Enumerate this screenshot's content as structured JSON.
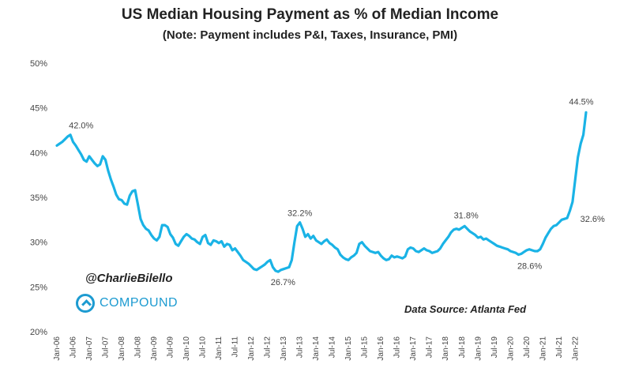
{
  "chart_data": {
    "type": "line",
    "title": "US Median Housing Payment as % of Median Income",
    "subtitle": "(Note: Payment includes P&I, Taxes, Insurance, PMI)",
    "xlabel": "",
    "ylabel": "",
    "ylim": [
      20,
      50
    ],
    "y_ticks": [
      "20%",
      "25%",
      "30%",
      "35%",
      "40%",
      "45%",
      "50%"
    ],
    "x_range": [
      "2006-01",
      "2022-05"
    ],
    "x_ticks": [
      "Jan-06",
      "Jul-06",
      "Jan-07",
      "Jul-07",
      "Jan-08",
      "Jul-08",
      "Jan-09",
      "Jul-09",
      "Jan-10",
      "Jul-10",
      "Jan-11",
      "Jul-11",
      "Jan-12",
      "Jul-12",
      "Jan-13",
      "Jul-13",
      "Jan-14",
      "Jul-14",
      "Jan-15",
      "Jul-15",
      "Jan-16",
      "Jul-16",
      "Jan-17",
      "Jul-17",
      "Jan-18",
      "Jul-18",
      "Jan-19",
      "Jul-19",
      "Jan-20",
      "Jul-20",
      "Jan-21",
      "Jul-21",
      "Jan-22"
    ],
    "grid": false,
    "line_color": "#1ab3e6",
    "series": [
      {
        "name": "",
        "points": [
          [
            "2006-01",
            40.8
          ],
          [
            "2006-02",
            41.0
          ],
          [
            "2006-03",
            41.2
          ],
          [
            "2006-04",
            41.5
          ],
          [
            "2006-05",
            41.8
          ],
          [
            "2006-06",
            42.0
          ],
          [
            "2006-07",
            41.2
          ],
          [
            "2006-08",
            40.8
          ],
          [
            "2006-09",
            40.3
          ],
          [
            "2006-10",
            39.8
          ],
          [
            "2006-11",
            39.2
          ],
          [
            "2006-12",
            39.0
          ],
          [
            "2007-01",
            39.6
          ],
          [
            "2007-02",
            39.2
          ],
          [
            "2007-03",
            38.8
          ],
          [
            "2007-04",
            38.5
          ],
          [
            "2007-05",
            38.7
          ],
          [
            "2007-06",
            39.6
          ],
          [
            "2007-07",
            39.2
          ],
          [
            "2007-08",
            38.0
          ],
          [
            "2007-09",
            37.0
          ],
          [
            "2007-10",
            36.2
          ],
          [
            "2007-11",
            35.3
          ],
          [
            "2007-12",
            34.8
          ],
          [
            "2008-01",
            34.7
          ],
          [
            "2008-02",
            34.3
          ],
          [
            "2008-03",
            34.2
          ],
          [
            "2008-04",
            35.2
          ],
          [
            "2008-05",
            35.7
          ],
          [
            "2008-06",
            35.8
          ],
          [
            "2008-07",
            34.2
          ],
          [
            "2008-08",
            32.6
          ],
          [
            "2008-09",
            31.9
          ],
          [
            "2008-10",
            31.5
          ],
          [
            "2008-11",
            31.3
          ],
          [
            "2008-12",
            30.8
          ],
          [
            "2009-01",
            30.4
          ],
          [
            "2009-02",
            30.2
          ],
          [
            "2009-03",
            30.6
          ],
          [
            "2009-04",
            31.9
          ],
          [
            "2009-05",
            31.9
          ],
          [
            "2009-06",
            31.7
          ],
          [
            "2009-07",
            30.9
          ],
          [
            "2009-08",
            30.5
          ],
          [
            "2009-09",
            29.8
          ],
          [
            "2009-10",
            29.6
          ],
          [
            "2009-11",
            30.1
          ],
          [
            "2009-12",
            30.6
          ],
          [
            "2010-01",
            30.9
          ],
          [
            "2010-02",
            30.7
          ],
          [
            "2010-03",
            30.4
          ],
          [
            "2010-04",
            30.3
          ],
          [
            "2010-05",
            30.0
          ],
          [
            "2010-06",
            29.8
          ],
          [
            "2010-07",
            30.6
          ],
          [
            "2010-08",
            30.8
          ],
          [
            "2010-09",
            29.9
          ],
          [
            "2010-10",
            29.7
          ],
          [
            "2010-11",
            30.2
          ],
          [
            "2010-12",
            30.1
          ],
          [
            "2011-01",
            29.9
          ],
          [
            "2011-02",
            30.1
          ],
          [
            "2011-03",
            29.5
          ],
          [
            "2011-04",
            29.8
          ],
          [
            "2011-05",
            29.7
          ],
          [
            "2011-06",
            29.1
          ],
          [
            "2011-07",
            29.3
          ],
          [
            "2011-08",
            28.9
          ],
          [
            "2011-09",
            28.5
          ],
          [
            "2011-10",
            28.0
          ],
          [
            "2011-11",
            27.8
          ],
          [
            "2011-12",
            27.6
          ],
          [
            "2012-01",
            27.3
          ],
          [
            "2012-02",
            27.0
          ],
          [
            "2012-03",
            26.9
          ],
          [
            "2012-04",
            27.1
          ],
          [
            "2012-05",
            27.3
          ],
          [
            "2012-06",
            27.5
          ],
          [
            "2012-07",
            27.8
          ],
          [
            "2012-08",
            28.0
          ],
          [
            "2012-09",
            27.2
          ],
          [
            "2012-10",
            26.8
          ],
          [
            "2012-11",
            26.7
          ],
          [
            "2012-12",
            26.9
          ],
          [
            "2013-01",
            27.0
          ],
          [
            "2013-02",
            27.1
          ],
          [
            "2013-03",
            27.2
          ],
          [
            "2013-04",
            28.0
          ],
          [
            "2013-05",
            30.0
          ],
          [
            "2013-06",
            31.8
          ],
          [
            "2013-07",
            32.2
          ],
          [
            "2013-08",
            31.5
          ],
          [
            "2013-09",
            30.6
          ],
          [
            "2013-10",
            30.9
          ],
          [
            "2013-11",
            30.4
          ],
          [
            "2013-12",
            30.7
          ],
          [
            "2014-01",
            30.2
          ],
          [
            "2014-02",
            30.0
          ],
          [
            "2014-03",
            29.8
          ],
          [
            "2014-04",
            30.1
          ],
          [
            "2014-05",
            30.3
          ],
          [
            "2014-06",
            29.9
          ],
          [
            "2014-07",
            29.7
          ],
          [
            "2014-08",
            29.4
          ],
          [
            "2014-09",
            29.2
          ],
          [
            "2014-10",
            28.6
          ],
          [
            "2014-11",
            28.3
          ],
          [
            "2014-12",
            28.1
          ],
          [
            "2015-01",
            28.0
          ],
          [
            "2015-02",
            28.3
          ],
          [
            "2015-03",
            28.5
          ],
          [
            "2015-04",
            28.8
          ],
          [
            "2015-05",
            29.8
          ],
          [
            "2015-06",
            30.0
          ],
          [
            "2015-07",
            29.6
          ],
          [
            "2015-08",
            29.3
          ],
          [
            "2015-09",
            29.0
          ],
          [
            "2015-10",
            28.9
          ],
          [
            "2015-11",
            28.8
          ],
          [
            "2015-12",
            28.9
          ],
          [
            "2016-01",
            28.5
          ],
          [
            "2016-02",
            28.2
          ],
          [
            "2016-03",
            28.0
          ],
          [
            "2016-04",
            28.1
          ],
          [
            "2016-05",
            28.5
          ],
          [
            "2016-06",
            28.3
          ],
          [
            "2016-07",
            28.4
          ],
          [
            "2016-08",
            28.3
          ],
          [
            "2016-09",
            28.2
          ],
          [
            "2016-10",
            28.4
          ],
          [
            "2016-11",
            29.2
          ],
          [
            "2016-12",
            29.4
          ],
          [
            "2017-01",
            29.3
          ],
          [
            "2017-02",
            29.0
          ],
          [
            "2017-03",
            28.9
          ],
          [
            "2017-04",
            29.1
          ],
          [
            "2017-05",
            29.3
          ],
          [
            "2017-06",
            29.1
          ],
          [
            "2017-07",
            29.0
          ],
          [
            "2017-08",
            28.8
          ],
          [
            "2017-09",
            28.9
          ],
          [
            "2017-10",
            29.0
          ],
          [
            "2017-11",
            29.3
          ],
          [
            "2017-12",
            29.8
          ],
          [
            "2018-01",
            30.2
          ],
          [
            "2018-02",
            30.6
          ],
          [
            "2018-03",
            31.1
          ],
          [
            "2018-04",
            31.4
          ],
          [
            "2018-05",
            31.5
          ],
          [
            "2018-06",
            31.4
          ],
          [
            "2018-07",
            31.6
          ],
          [
            "2018-08",
            31.8
          ],
          [
            "2018-09",
            31.5
          ],
          [
            "2018-10",
            31.2
          ],
          [
            "2018-11",
            31.0
          ],
          [
            "2018-12",
            30.8
          ],
          [
            "2019-01",
            30.5
          ],
          [
            "2019-02",
            30.6
          ],
          [
            "2019-03",
            30.3
          ],
          [
            "2019-04",
            30.4
          ],
          [
            "2019-05",
            30.2
          ],
          [
            "2019-06",
            30.0
          ],
          [
            "2019-07",
            29.8
          ],
          [
            "2019-08",
            29.6
          ],
          [
            "2019-09",
            29.5
          ],
          [
            "2019-10",
            29.4
          ],
          [
            "2019-11",
            29.3
          ],
          [
            "2019-12",
            29.2
          ],
          [
            "2020-01",
            29.0
          ],
          [
            "2020-02",
            28.9
          ],
          [
            "2020-03",
            28.8
          ],
          [
            "2020-04",
            28.6
          ],
          [
            "2020-05",
            28.7
          ],
          [
            "2020-06",
            28.9
          ],
          [
            "2020-07",
            29.1
          ],
          [
            "2020-08",
            29.2
          ],
          [
            "2020-09",
            29.1
          ],
          [
            "2020-10",
            29.0
          ],
          [
            "2020-11",
            29.0
          ],
          [
            "2020-12",
            29.2
          ],
          [
            "2021-01",
            29.8
          ],
          [
            "2021-02",
            30.5
          ],
          [
            "2021-03",
            31.0
          ],
          [
            "2021-04",
            31.5
          ],
          [
            "2021-05",
            31.8
          ],
          [
            "2021-06",
            31.9
          ],
          [
            "2021-07",
            32.2
          ],
          [
            "2021-08",
            32.5
          ],
          [
            "2021-09",
            32.6
          ],
          [
            "2021-10",
            32.7
          ],
          [
            "2021-11",
            33.5
          ],
          [
            "2021-12",
            34.5
          ],
          [
            "2022-01",
            37.0
          ],
          [
            "2022-02",
            39.5
          ],
          [
            "2022-03",
            41.0
          ],
          [
            "2022-04",
            42.0
          ],
          [
            "2022-05",
            44.5
          ]
        ]
      }
    ],
    "annotations": [
      {
        "label": "42.0%",
        "x": "2006-06",
        "y": 42.0
      },
      {
        "label": "26.7%",
        "x": "2012-11",
        "y": 26.7
      },
      {
        "label": "32.2%",
        "x": "2013-07",
        "y": 32.2
      },
      {
        "label": "31.8%",
        "x": "2018-08",
        "y": 31.8
      },
      {
        "label": "28.6%",
        "x": "2020-04",
        "y": 28.6
      },
      {
        "label": "32.6%",
        "x": "2021-09",
        "y": 32.6
      },
      {
        "label": "44.5%",
        "x": "2022-05",
        "y": 44.5
      }
    ]
  },
  "watermark": {
    "handle": "@CharlieBilello",
    "logo_text": "COMPOUND",
    "source": "Data Source: Atlanta Fed",
    "brand_color": "#1d9bd1"
  }
}
